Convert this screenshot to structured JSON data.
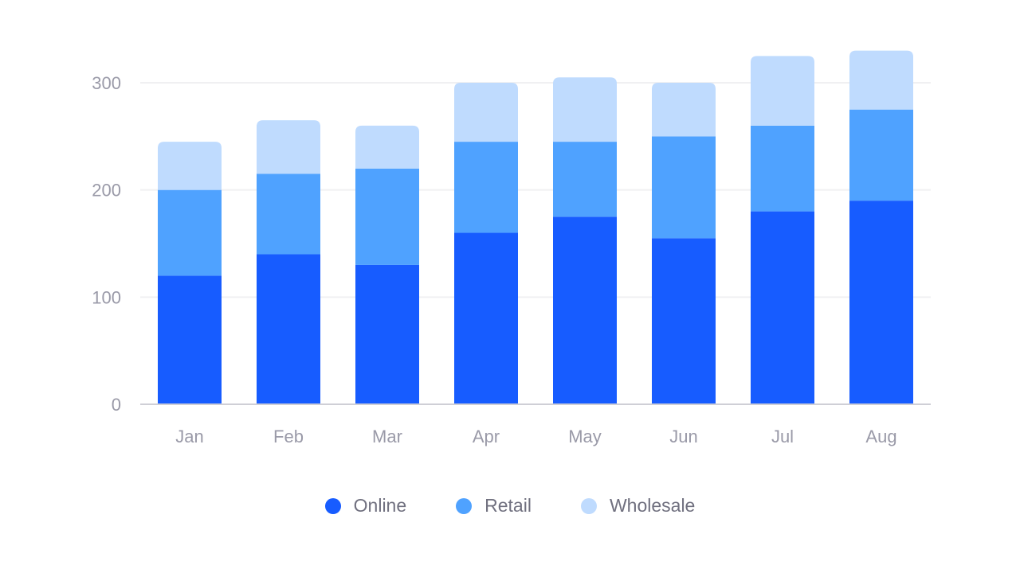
{
  "chart_data": {
    "type": "bar",
    "stacked": true,
    "title": "",
    "xlabel": "",
    "ylabel": "",
    "categories": [
      "Jan",
      "Feb",
      "Mar",
      "Apr",
      "May",
      "Jun",
      "Jul",
      "Aug"
    ],
    "series": [
      {
        "name": "Online",
        "color": "#175cff",
        "values": [
          120,
          140,
          130,
          160,
          175,
          155,
          180,
          190
        ]
      },
      {
        "name": "Retail",
        "color": "#4fa2ff",
        "values": [
          80,
          75,
          90,
          85,
          70,
          95,
          80,
          85
        ]
      },
      {
        "name": "Wholesale",
        "color": "#bfdbfe",
        "values": [
          45,
          50,
          40,
          55,
          60,
          50,
          65,
          55
        ]
      }
    ],
    "ylim": [
      0,
      330
    ],
    "yticks": [
      0,
      100,
      200,
      300
    ],
    "grid": true,
    "legend_position": "bottom"
  },
  "colors": {
    "axis_text": "#9a9aa8",
    "grid": "#f0f0f2",
    "axis_line": "#cfcfd6",
    "legend_text": "#70707f"
  }
}
